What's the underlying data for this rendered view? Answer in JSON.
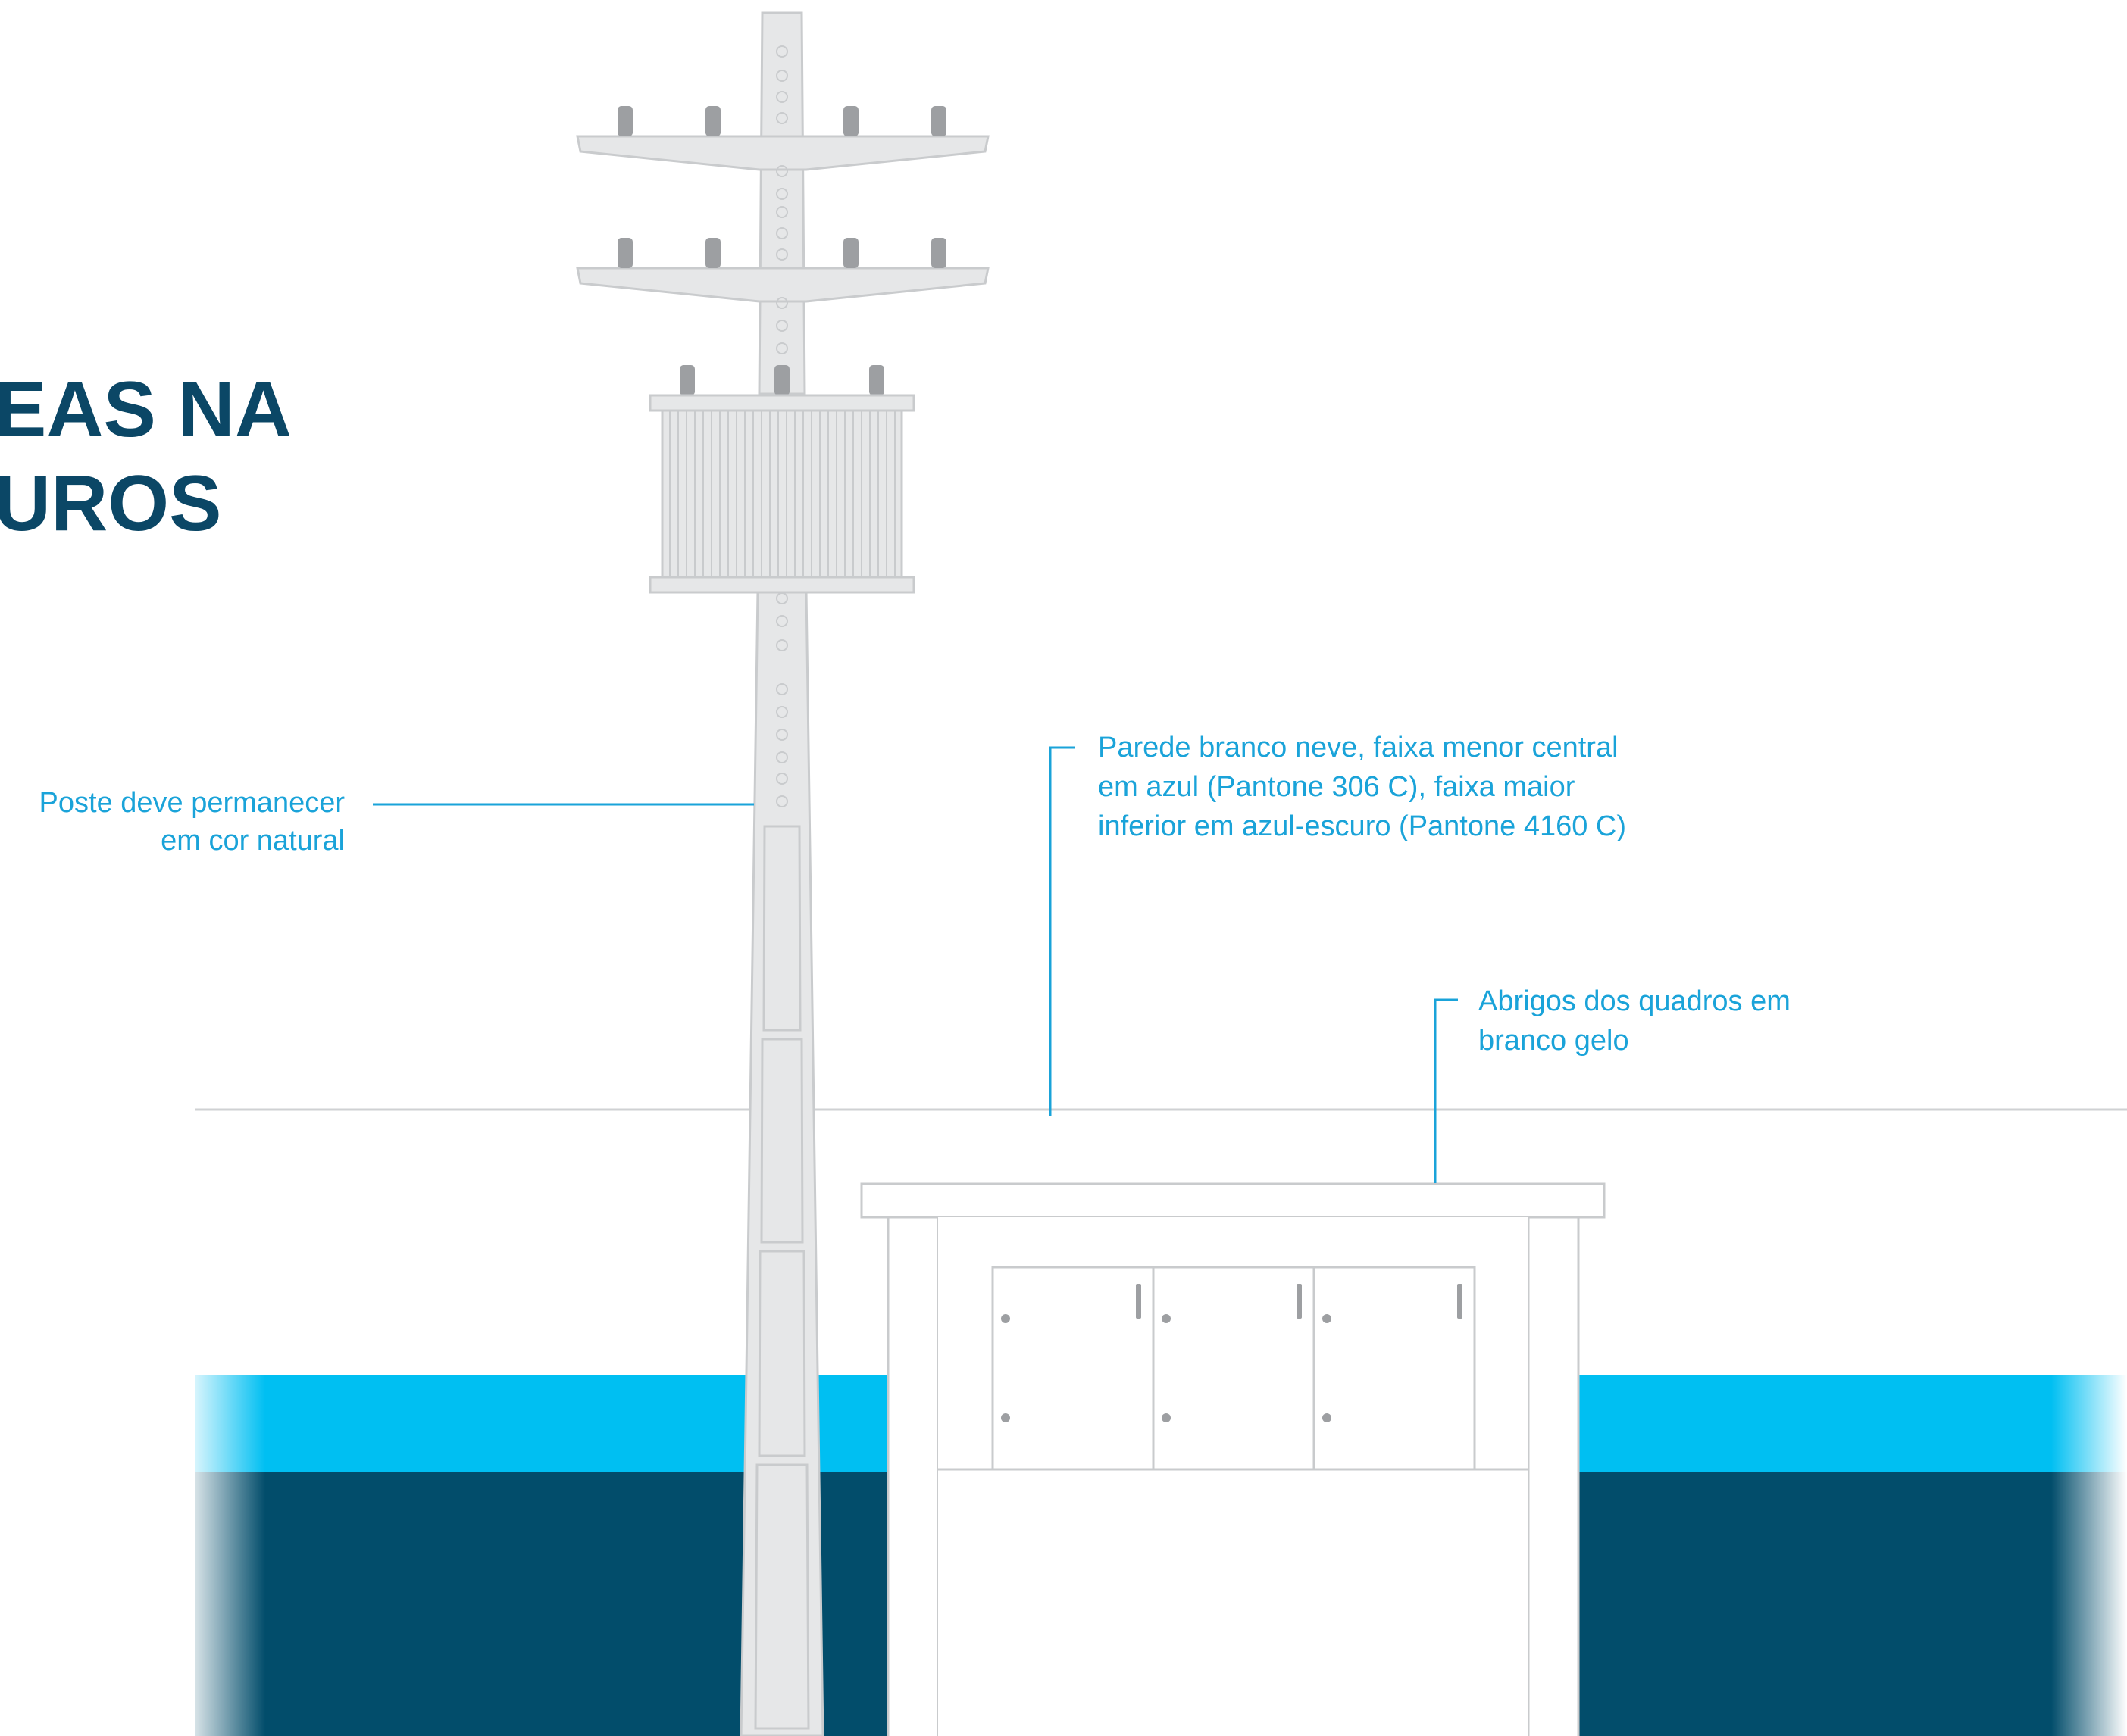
{
  "heading": {
    "line1": "EAS NA",
    "line2": "UROS"
  },
  "annotations": {
    "pole": {
      "line1": "Poste deve permanecer",
      "line2": "em cor natural"
    },
    "wall": {
      "line1": "Parede branco neve, faixa menor central",
      "line2": "em azul (Pantone 306 C), faixa maior",
      "line3": "inferior em azul-escuro (Pantone 4160 C)"
    },
    "shelter": {
      "line1": "Abrigos dos quadros em",
      "line2": "branco gelo"
    }
  },
  "colors": {
    "stripe_blue": "#00bff2",
    "stripe_dark_blue": "#024d6b",
    "pole_gray": "#e6e7e8",
    "annotation_blue": "#1aa3d9",
    "heading_blue": "#0b4766"
  }
}
